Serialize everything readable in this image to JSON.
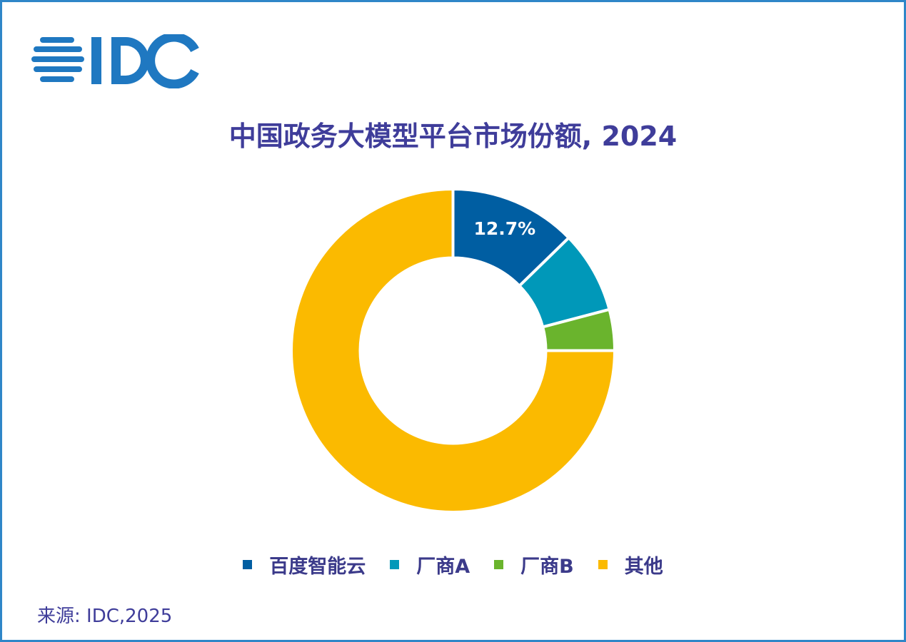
{
  "logo": {
    "text": "IDC",
    "color": "#1f78c1"
  },
  "title": "中国政务大模型平台市场份额, 2024",
  "chart_data": {
    "type": "pie",
    "donut": true,
    "title": "中国政务大模型平台市场份额, 2024",
    "categories": [
      "百度智能云",
      "厂商A",
      "厂商B",
      "其他"
    ],
    "values": [
      12.7,
      8.2,
      4.1,
      75.0
    ],
    "data_labels": [
      "12.7%",
      "",
      "",
      ""
    ],
    "colors": [
      "#005ea2",
      "#0098b9",
      "#6ab42d",
      "#fbba00"
    ],
    "legend_position": "bottom"
  },
  "source": "来源: IDC,2025"
}
